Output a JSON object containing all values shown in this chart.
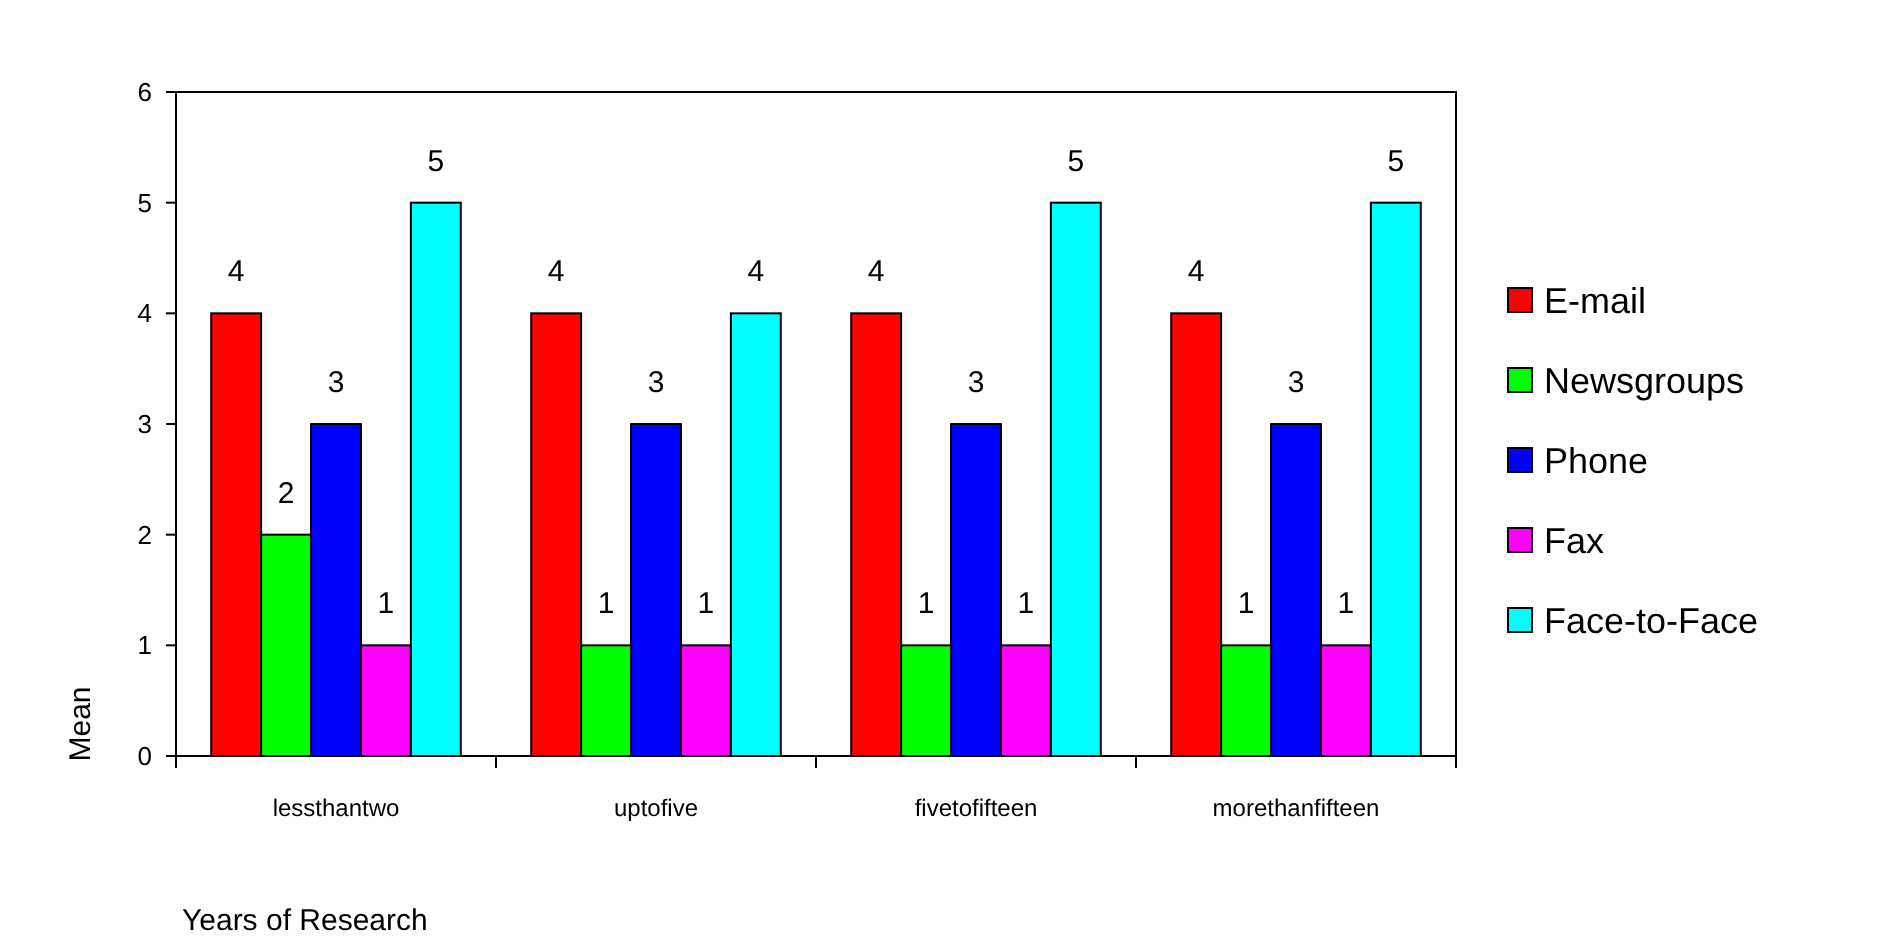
{
  "chart_data": {
    "type": "bar",
    "xlabel": "Years of Research",
    "ylabel": "Mean",
    "categories": [
      "lessthantwo",
      "uptofive",
      "fivetofifteen",
      "morethanfifteen"
    ],
    "series": [
      {
        "name": "E-mail",
        "color": "#ff0000",
        "values": [
          4,
          4,
          4,
          4
        ]
      },
      {
        "name": "Newsgroups",
        "color": "#00ff00",
        "values": [
          2,
          1,
          1,
          1
        ]
      },
      {
        "name": "Phone",
        "color": "#0000ff",
        "values": [
          3,
          3,
          3,
          3
        ]
      },
      {
        "name": "Fax",
        "color": "#ff00ff",
        "values": [
          1,
          1,
          1,
          1
        ]
      },
      {
        "name": "Face-to-Face",
        "color": "#00ffff",
        "values": [
          5,
          4,
          5,
          5
        ]
      }
    ],
    "ylim": [
      0,
      6
    ],
    "yticks": [
      0,
      1,
      2,
      3,
      4,
      5,
      6
    ],
    "grid": false,
    "legend": "right",
    "data_labels": true
  }
}
